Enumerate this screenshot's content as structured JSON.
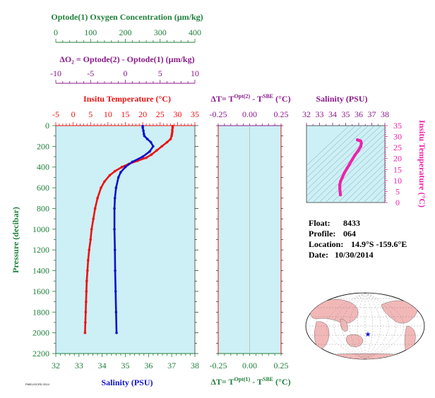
{
  "colors": {
    "green": "#1f7f3a",
    "purple": "#8a1a8a",
    "red": "#ee1111",
    "blue": "#1111cc",
    "magenta": "#ee22aa",
    "panel_bg": "#ccf0f6",
    "land": "#f2b8b8",
    "ocean": "#ffffff"
  },
  "info": {
    "float_label": "Float:",
    "float_value": "8433",
    "profile_label": "Profile:",
    "profile_value": "064",
    "location_label": "Location:",
    "location_value": "14.9°S  -159.6°E",
    "date_label": "Date:",
    "date_value": "10/30/2014"
  },
  "footer_stamp": "PMEL/OCRD 2014",
  "chart_data": [
    {
      "type": "line",
      "id": "profile",
      "title": "",
      "ylabel": "Pressure (decibar)",
      "ylim": [
        0,
        2200
      ],
      "y_inverted": true,
      "y_ticks": [
        0,
        200,
        400,
        600,
        800,
        1000,
        1200,
        1400,
        1600,
        1800,
        2000,
        2200
      ],
      "axes": {
        "oxygen": {
          "label": "Optode(1) Oxygen Concentration (µm/kg)",
          "range": [
            0,
            400
          ],
          "ticks": [
            0,
            100,
            200,
            300,
            400
          ],
          "color": "green"
        },
        "delta_o2": {
          "label": "ΔO₂ = Optode(2) - Optode(1)   (µm/kg)",
          "range": [
            -10,
            10
          ],
          "ticks": [
            -10,
            -5,
            0,
            5,
            10
          ],
          "color": "purple"
        },
        "temperature": {
          "label": "Insitu Temperature (°C)",
          "range": [
            -5,
            35
          ],
          "ticks": [
            -5,
            0,
            5,
            10,
            15,
            20,
            25,
            30,
            35
          ],
          "color": "red"
        },
        "salinity": {
          "label": "Salinity (PSU)",
          "range": [
            32,
            38
          ],
          "ticks": [
            32,
            33,
            34,
            35,
            36,
            37,
            38
          ],
          "color": "green"
        }
      },
      "series": [
        {
          "name": "Temperature",
          "color": "red",
          "points": [
            [
              28.6,
              5
            ],
            [
              28.6,
              20
            ],
            [
              28.5,
              40
            ],
            [
              28.5,
              60
            ],
            [
              28.4,
              80
            ],
            [
              28.3,
              100
            ],
            [
              28.0,
              130
            ],
            [
              27.0,
              160
            ],
            [
              25.5,
              200
            ],
            [
              24.0,
              240
            ],
            [
              22.5,
              280
            ],
            [
              21.0,
              310
            ],
            [
              18.5,
              340
            ],
            [
              16.0,
              370
            ],
            [
              14.0,
              400
            ],
            [
              12.0,
              440
            ],
            [
              10.5,
              480
            ],
            [
              9.0,
              540
            ],
            [
              8.0,
              600
            ],
            [
              7.0,
              700
            ],
            [
              6.3,
              800
            ],
            [
              5.8,
              900
            ],
            [
              5.3,
              1000
            ],
            [
              5.0,
              1100
            ],
            [
              4.6,
              1200
            ],
            [
              4.3,
              1300
            ],
            [
              4.1,
              1400
            ],
            [
              3.9,
              1500
            ],
            [
              3.8,
              1600
            ],
            [
              3.7,
              1700
            ],
            [
              3.6,
              1800
            ],
            [
              3.5,
              1900
            ],
            [
              3.4,
              2000
            ]
          ]
        },
        {
          "name": "Salinity",
          "color": "blue",
          "points": [
            [
              35.75,
              5
            ],
            [
              35.75,
              20
            ],
            [
              35.78,
              50
            ],
            [
              35.8,
              80
            ],
            [
              35.82,
              100
            ],
            [
              35.95,
              130
            ],
            [
              36.1,
              160
            ],
            [
              36.2,
              200
            ],
            [
              36.05,
              250
            ],
            [
              35.75,
              300
            ],
            [
              35.3,
              350
            ],
            [
              35.0,
              400
            ],
            [
              34.8,
              450
            ],
            [
              34.7,
              500
            ],
            [
              34.6,
              600
            ],
            [
              34.55,
              700
            ],
            [
              34.53,
              800
            ],
            [
              34.53,
              1000
            ],
            [
              34.55,
              1200
            ],
            [
              34.56,
              1400
            ],
            [
              34.58,
              1600
            ],
            [
              34.6,
              1800
            ],
            [
              34.62,
              2000
            ]
          ]
        }
      ]
    },
    {
      "type": "line",
      "id": "delta_t",
      "title": "",
      "top_label": "ΔT= T^Opt(2) - T^SBE (°C)",
      "bottom_label": "ΔT= T^Opt(1) - T^SBE (°C)",
      "xlim": [
        -0.25,
        0.25
      ],
      "x_ticks": [
        -0.25,
        0.0,
        0.25
      ],
      "x_tick_labels": [
        "-0.25",
        "0.00",
        "0.25"
      ],
      "ylim": [
        0,
        2200
      ],
      "series": []
    },
    {
      "type": "scatter",
      "id": "ts_diagram",
      "title": "Salinity (PSU)",
      "xlabel": "Salinity (PSU)",
      "ylabel": "Insitu Temperature (°C)",
      "xlim": [
        32,
        38
      ],
      "ylim": [
        0,
        35
      ],
      "x_ticks": [
        32,
        33,
        34,
        35,
        36,
        37,
        38
      ],
      "y_ticks": [
        0,
        5,
        10,
        15,
        20,
        25,
        30,
        35
      ],
      "series": [
        {
          "name": "T-S",
          "color": "magenta",
          "points": [
            [
              34.6,
              3.5
            ],
            [
              34.57,
              5
            ],
            [
              34.55,
              6.5
            ],
            [
              34.55,
              8
            ],
            [
              34.6,
              9.5
            ],
            [
              34.75,
              11.5
            ],
            [
              34.9,
              13.5
            ],
            [
              35.1,
              15.5
            ],
            [
              35.3,
              17.5
            ],
            [
              35.5,
              19.5
            ],
            [
              35.7,
              21.5
            ],
            [
              35.95,
              23.5
            ],
            [
              36.15,
              25.5
            ],
            [
              36.2,
              27
            ],
            [
              36.15,
              28
            ],
            [
              36.0,
              28.3
            ],
            [
              35.9,
              28.5
            ]
          ]
        }
      ]
    }
  ],
  "map": {
    "marker_lon": -159.6,
    "marker_lat": -14.9
  }
}
